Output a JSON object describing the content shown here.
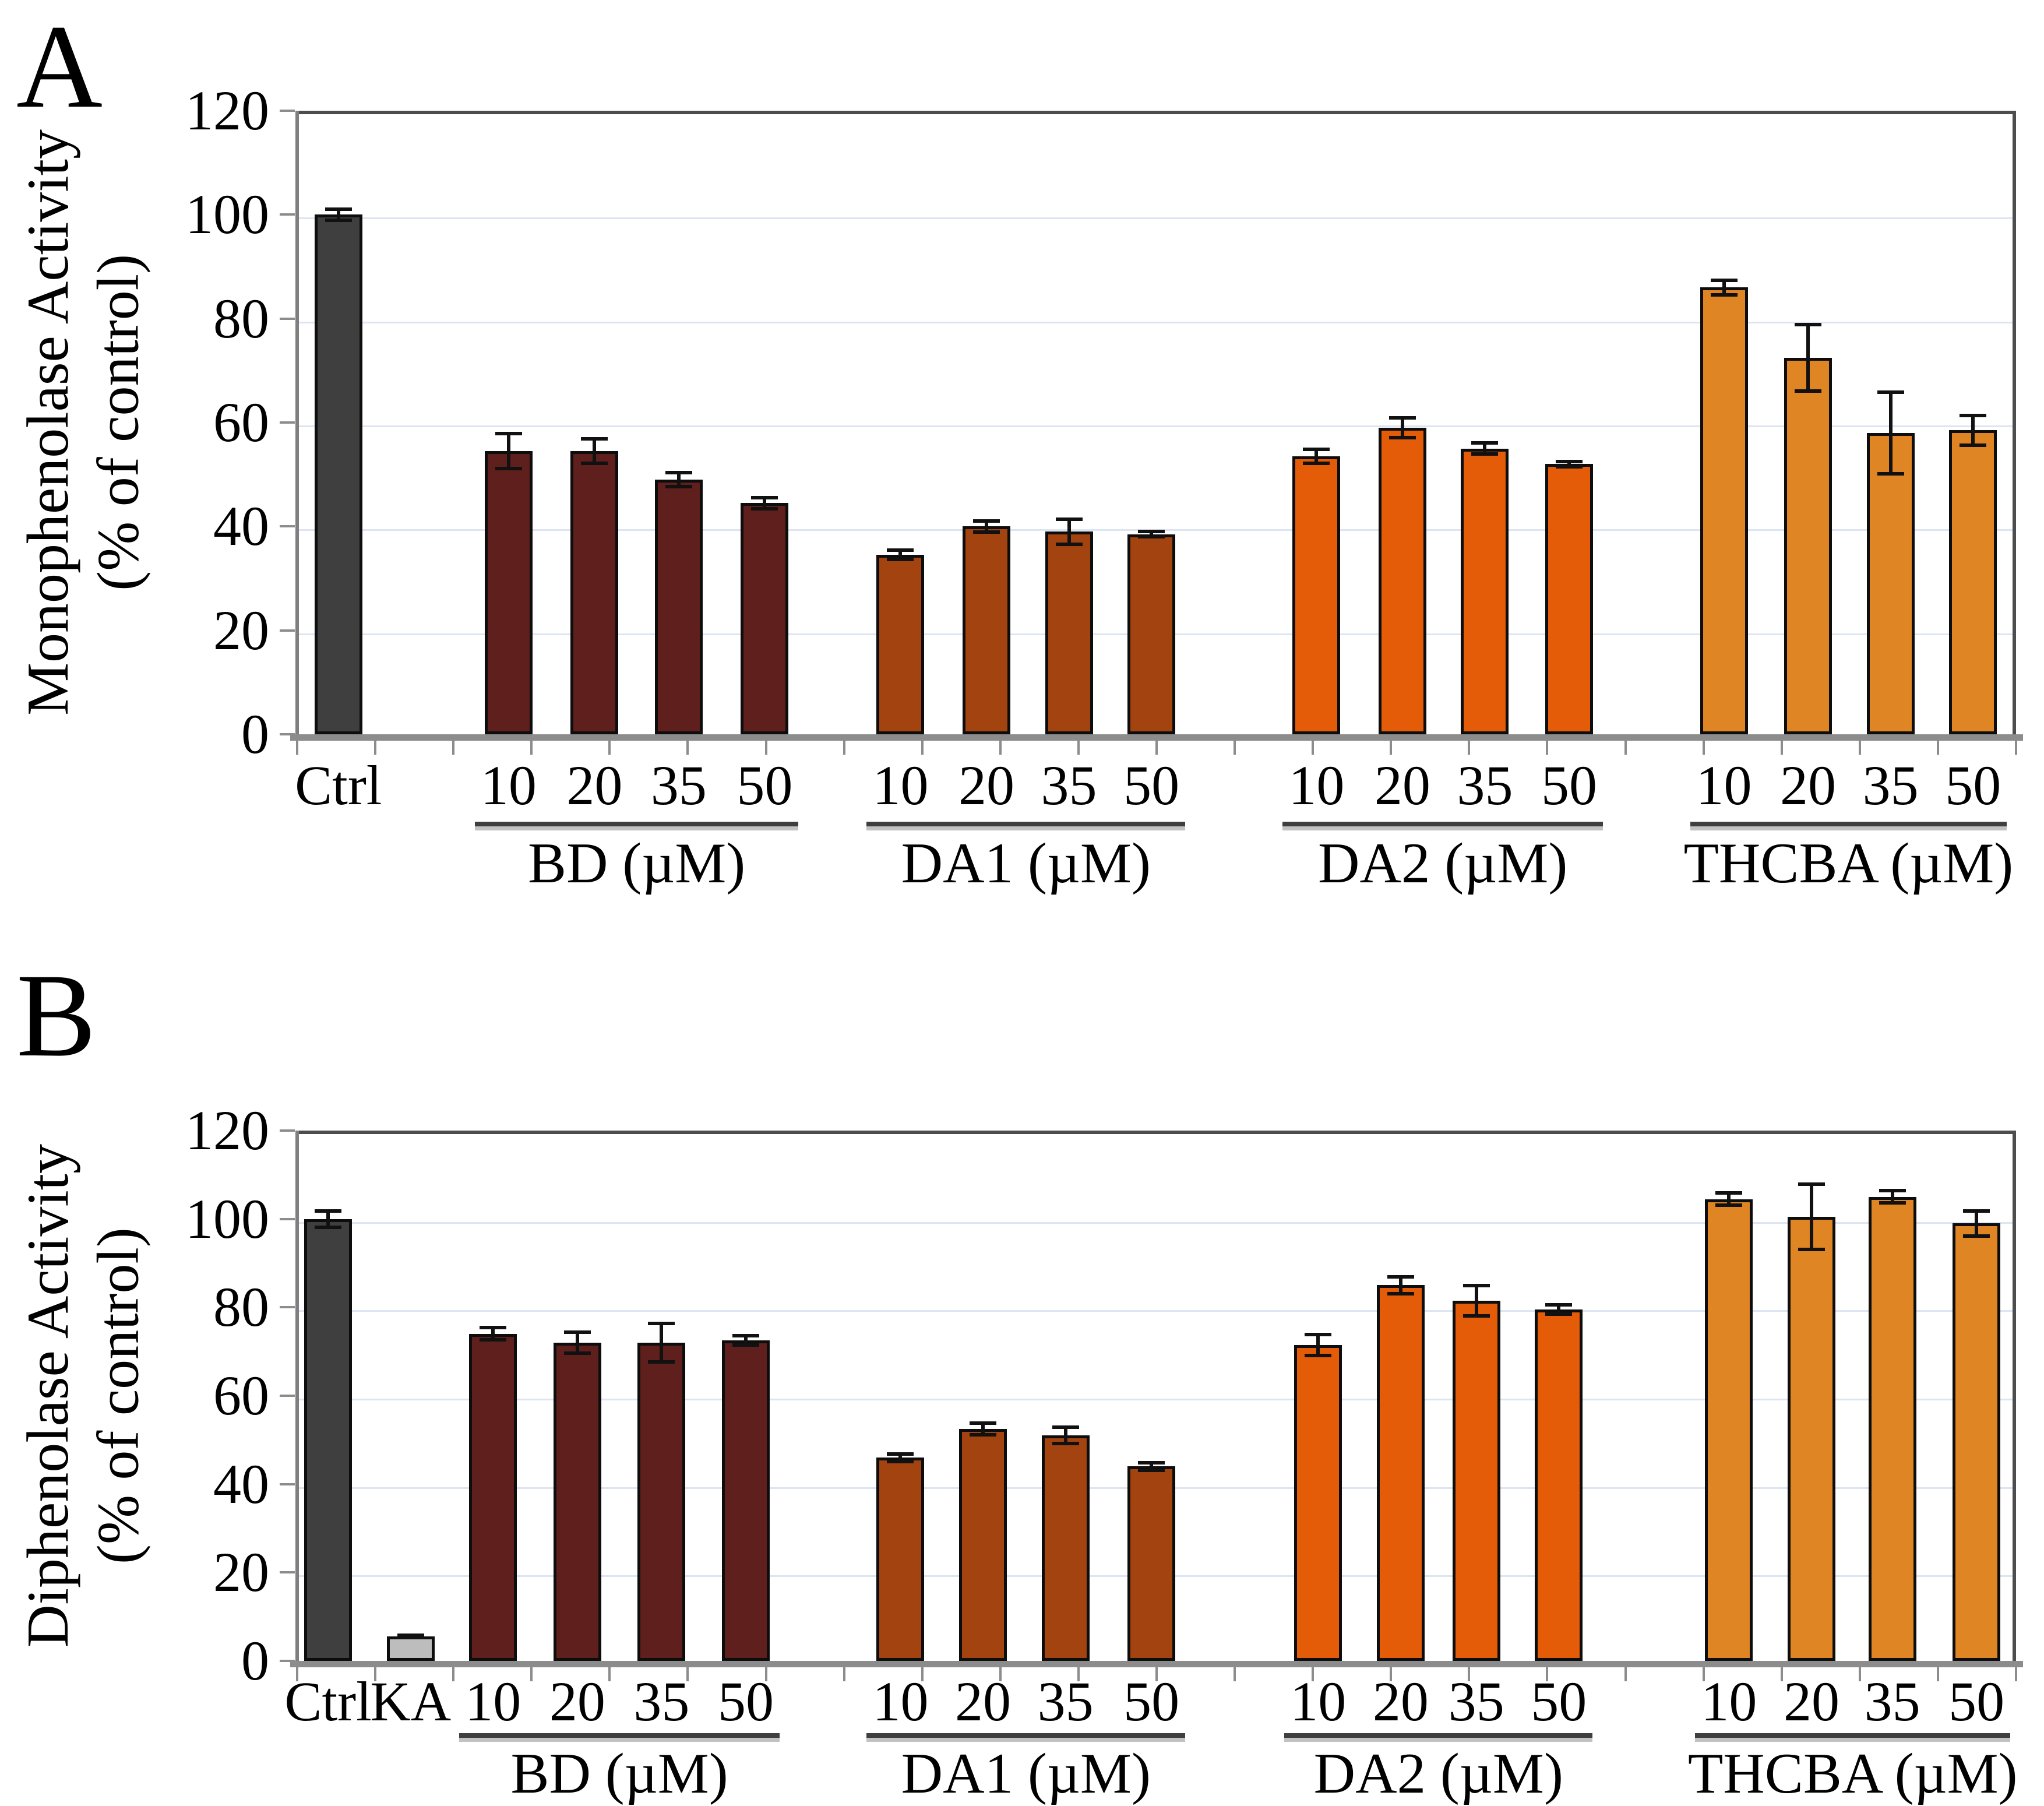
{
  "panels": [
    {
      "letter": "A",
      "ylabel_line1": "Monophenolase Activity",
      "ylabel_line2": "(% of control)"
    },
    {
      "letter": "B",
      "ylabel_line1": "Diphenolase Activity",
      "ylabel_line2": "(% of control)"
    }
  ],
  "colors": {
    "control": "#3f3f3f",
    "ka": "#bdbdbd",
    "bd": "#5f1f1c",
    "da1": "#a34410",
    "da2": "#e45c07",
    "thcba": "#df8523",
    "gridline": "#dde4f2",
    "axis": "#8c8c8c",
    "frame": "#4d4d4d",
    "error_bar": "#111111"
  },
  "chart_data": [
    {
      "type": "bar",
      "title": "",
      "ylabel": "Monophenolase Activity (% of control)",
      "xlabel": "",
      "ylim": [
        0,
        120
      ],
      "yticks": [
        "0",
        "20",
        "40",
        "60",
        "80",
        "100",
        "120"
      ],
      "grid": true,
      "legend": false,
      "groups": [
        {
          "key": "ctrl",
          "label": "",
          "categories": [
            "Ctrl"
          ],
          "values": [
            100
          ],
          "errors": [
            1.2
          ]
        },
        {
          "key": "bd",
          "label": "BD (µM)",
          "categories": [
            "10",
            "20",
            "35",
            "50"
          ],
          "values": [
            54.5,
            54.5,
            49,
            44.5
          ],
          "errors": [
            3.5,
            2.5,
            1.5,
            1.2
          ]
        },
        {
          "key": "da1",
          "label": "DA1 (µM)",
          "categories": [
            "10",
            "20",
            "35",
            "50"
          ],
          "values": [
            34.5,
            40,
            39,
            38.5
          ],
          "errors": [
            1,
            1.2,
            2.5,
            0.6
          ]
        },
        {
          "key": "da2",
          "label": "DA2 (µM)",
          "categories": [
            "10",
            "20",
            "35",
            "50"
          ],
          "values": [
            53.5,
            59,
            55,
            52
          ],
          "errors": [
            1.5,
            2,
            1.2,
            0.6
          ]
        },
        {
          "key": "thcba",
          "label": "THCBA (µM)",
          "categories": [
            "10",
            "20",
            "35",
            "50"
          ],
          "values": [
            86,
            72.5,
            58,
            58.5
          ],
          "errors": [
            1.5,
            6.5,
            8,
            3
          ]
        }
      ]
    },
    {
      "type": "bar",
      "title": "",
      "ylabel": "Diphenolase Activity (% of control)",
      "xlabel": "",
      "ylim": [
        0,
        120
      ],
      "yticks": [
        "0",
        "20",
        "40",
        "60",
        "80",
        "100",
        "120"
      ],
      "grid": true,
      "legend": false,
      "groups": [
        {
          "key": "ctrl",
          "label": "",
          "categories": [
            "Ctrl"
          ],
          "values": [
            100
          ],
          "errors": [
            2
          ]
        },
        {
          "key": "ka",
          "label": "",
          "categories": [
            "KA"
          ],
          "values": [
            5.5
          ],
          "errors": [
            0.4
          ]
        },
        {
          "key": "bd",
          "label": "BD (µM)",
          "categories": [
            "10",
            "20",
            "35",
            "50"
          ],
          "values": [
            74,
            72,
            72,
            72.5
          ],
          "errors": [
            1.5,
            2.5,
            4.5,
            1.2
          ]
        },
        {
          "key": "da1",
          "label": "DA1 (µM)",
          "categories": [
            "10",
            "20",
            "35",
            "50"
          ],
          "values": [
            46,
            52.5,
            51,
            44
          ],
          "errors": [
            1,
            1.5,
            2,
            1
          ]
        },
        {
          "key": "da2",
          "label": "DA2 (µM)",
          "categories": [
            "10",
            "20",
            "35",
            "50"
          ],
          "values": [
            71.5,
            85,
            81.5,
            79.5
          ],
          "errors": [
            2.5,
            2,
            3.5,
            1.2
          ]
        },
        {
          "key": "thcba",
          "label": "THCBA (µM)",
          "categories": [
            "10",
            "20",
            "35",
            "50"
          ],
          "values": [
            104.5,
            100.5,
            105,
            99
          ],
          "errors": [
            1.5,
            7.5,
            1.5,
            3
          ]
        }
      ]
    }
  ]
}
